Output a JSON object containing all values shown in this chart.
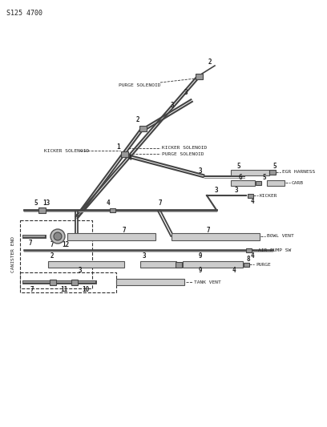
{
  "title": "S125 4700",
  "bg_color": "#ffffff",
  "lc": "#333333",
  "labels": {
    "purge_solenoid_top": "PURGE SOLENOID",
    "kicker_solenoid_left": "KICKER SOLENOID",
    "kicker_solenoid_right": "KICKER SOLENOID",
    "purge_solenoid_right": "PURGE SOLENOID",
    "egr_harness": "EGR HARNESS",
    "carb": "CARB",
    "kicker": "KICKER",
    "bowl_vent": "BOWL VENT",
    "air_pump_sw": "AIR PUMP SW",
    "purge": "PURGE",
    "tank_vent": "TANK VENT",
    "canister_end": "CANISTER END"
  },
  "figsize": [
    4.08,
    5.33
  ],
  "dpi": 100
}
